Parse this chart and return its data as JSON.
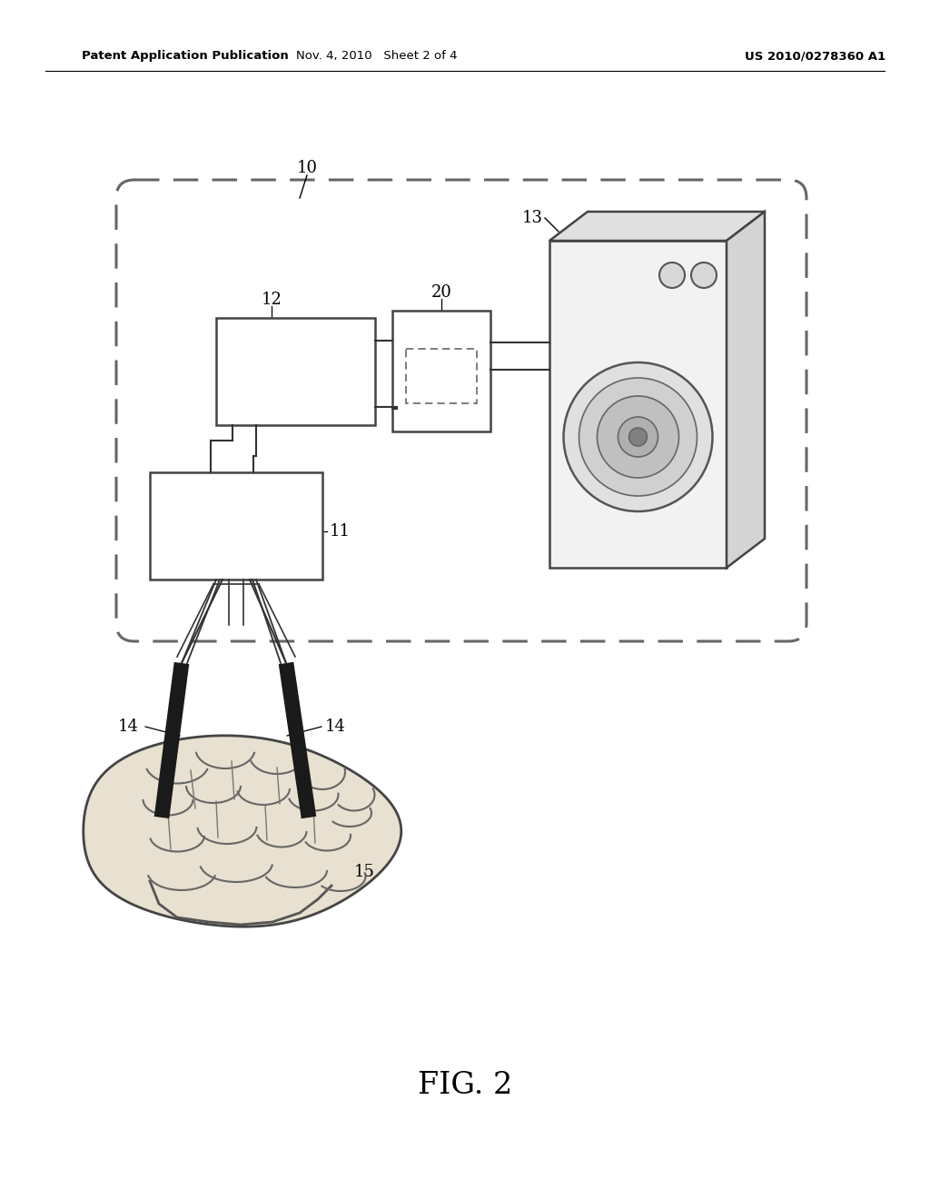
{
  "bg_color": "#ffffff",
  "header_left": "Patent Application Publication",
  "header_mid": "Nov. 4, 2010   Sheet 2 of 4",
  "header_right": "US 2010/0278360 A1",
  "fig_label": "FIG. 2",
  "label_10": "10",
  "label_11": "11",
  "label_12": "12",
  "label_13": "13",
  "label_14_left": "14",
  "label_14_right": "14",
  "label_15": "15",
  "label_20": "20",
  "line_color": "#333333",
  "box_edge": "#444444",
  "dash_color": "#666666"
}
